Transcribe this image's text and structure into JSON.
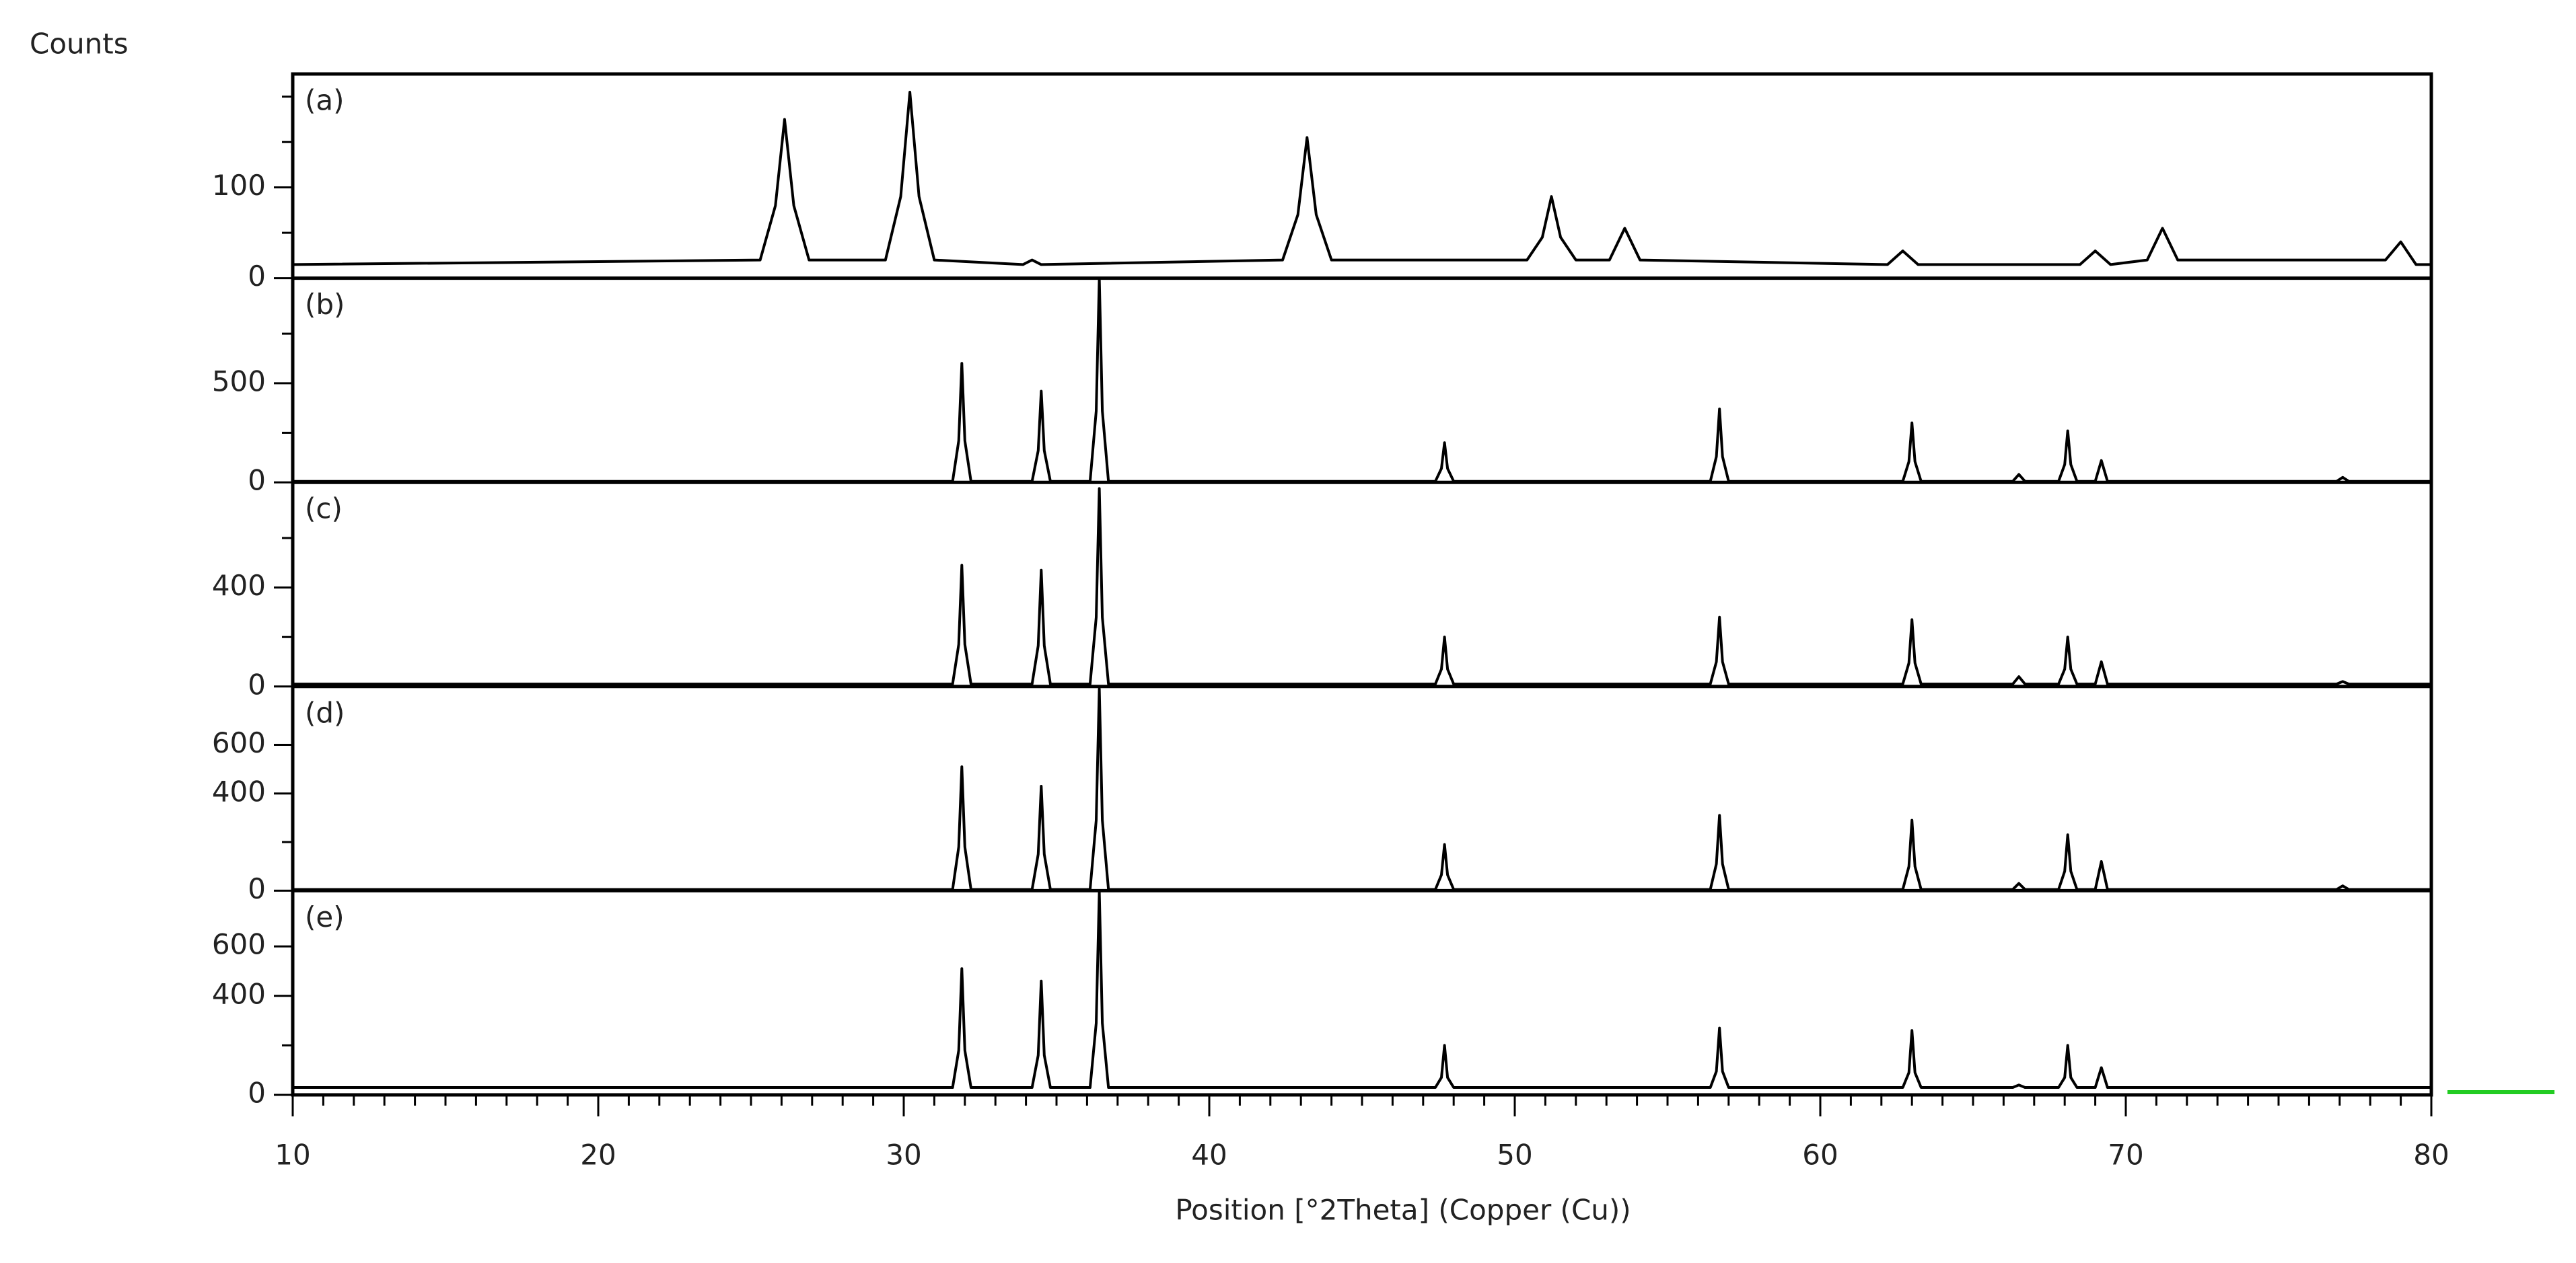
{
  "chart_data": [
    {
      "type": "line",
      "label": "(a)",
      "ylabel": "Counts",
      "xlim": [
        10,
        80
      ],
      "ylim": [
        0,
        225
      ],
      "yticks": [
        0,
        100
      ],
      "minor_yticks": [
        50,
        150,
        200
      ],
      "x": [
        10,
        25.3,
        25.8,
        26.1,
        26.4,
        26.9,
        29.4,
        29.9,
        30.2,
        30.5,
        31.0,
        33.9,
        34.2,
        34.5,
        42.4,
        42.9,
        43.2,
        43.5,
        44.0,
        50.4,
        50.9,
        51.2,
        51.5,
        52.0,
        53.1,
        53.6,
        54.1,
        62.2,
        62.7,
        63.2,
        68.5,
        69.0,
        69.5,
        70.7,
        71.2,
        71.7,
        78.5,
        79.0,
        79.5,
        80
      ],
      "series": [
        {
          "color": "#000000",
          "values": [
            15,
            20,
            80,
            175,
            80,
            20,
            20,
            90,
            205,
            90,
            20,
            15,
            20,
            15,
            20,
            70,
            155,
            70,
            20,
            20,
            45,
            90,
            45,
            20,
            20,
            55,
            20,
            15,
            30,
            15,
            15,
            30,
            15,
            20,
            55,
            20,
            20,
            40,
            15,
            15
          ]
        }
      ]
    },
    {
      "type": "line",
      "label": "(b)",
      "xlim": [
        10,
        80
      ],
      "ylim": [
        0,
        1030
      ],
      "yticks": [
        0,
        500
      ],
      "minor_yticks": [
        250,
        750
      ],
      "x": [
        10,
        20,
        30,
        31.6,
        31.8,
        31.9,
        32.0,
        32.2,
        34.2,
        34.4,
        34.5,
        34.6,
        34.8,
        36.1,
        36.3,
        36.4,
        36.5,
        36.7,
        47.4,
        47.6,
        47.7,
        47.8,
        48.0,
        56.4,
        56.6,
        56.7,
        56.8,
        57.0,
        62.7,
        62.9,
        63.0,
        63.1,
        63.3,
        66.3,
        66.5,
        66.7,
        67.8,
        68.0,
        68.1,
        68.2,
        68.4,
        69.0,
        69.2,
        69.4,
        76.9,
        77.1,
        77.3,
        80
      ],
      "series": [
        {
          "color": "#000000",
          "values": [
            5,
            5,
            5,
            5,
            210,
            600,
            210,
            5,
            5,
            160,
            460,
            160,
            5,
            5,
            360,
            1030,
            360,
            5,
            5,
            70,
            200,
            70,
            5,
            5,
            130,
            370,
            130,
            5,
            5,
            105,
            300,
            105,
            5,
            5,
            40,
            5,
            5,
            90,
            260,
            90,
            5,
            5,
            110,
            5,
            5,
            25,
            5,
            5
          ]
        }
      ]
    },
    {
      "type": "line",
      "label": "(c)",
      "xlim": [
        10,
        80
      ],
      "ylim": [
        0,
        825
      ],
      "yticks": [
        0,
        400
      ],
      "minor_yticks": [
        200,
        600
      ],
      "x": [
        10,
        20,
        30,
        31.6,
        31.8,
        31.9,
        32.0,
        32.2,
        34.2,
        34.4,
        34.5,
        34.6,
        34.8,
        36.1,
        36.3,
        36.4,
        36.5,
        36.7,
        47.4,
        47.6,
        47.7,
        47.8,
        48.0,
        56.4,
        56.6,
        56.7,
        56.8,
        57.0,
        62.7,
        62.9,
        63.0,
        63.1,
        63.3,
        66.3,
        66.5,
        66.7,
        67.8,
        68.0,
        68.1,
        68.2,
        68.4,
        69.0,
        69.2,
        69.4,
        76.9,
        77.1,
        77.3,
        80
      ],
      "series": [
        {
          "color": "#000000",
          "values": [
            10,
            10,
            10,
            10,
            170,
            490,
            170,
            10,
            10,
            165,
            470,
            165,
            10,
            10,
            280,
            800,
            280,
            10,
            10,
            70,
            200,
            70,
            10,
            10,
            100,
            280,
            100,
            10,
            10,
            95,
            270,
            95,
            10,
            10,
            40,
            10,
            10,
            70,
            200,
            70,
            10,
            10,
            100,
            10,
            10,
            20,
            10,
            10
          ]
        }
      ]
    },
    {
      "type": "line",
      "label": "(d)",
      "xlim": [
        10,
        80
      ],
      "ylim": [
        0,
        840
      ],
      "yticks": [
        0,
        400,
        600
      ],
      "minor_yticks": [
        200
      ],
      "x": [
        10,
        20,
        30,
        31.6,
        31.8,
        31.9,
        32.0,
        32.2,
        34.2,
        34.4,
        34.5,
        34.6,
        34.8,
        36.1,
        36.3,
        36.4,
        36.5,
        36.7,
        47.4,
        47.6,
        47.7,
        47.8,
        48.0,
        56.4,
        56.6,
        56.7,
        56.8,
        57.0,
        62.7,
        62.9,
        63.0,
        63.1,
        63.3,
        66.3,
        66.5,
        66.7,
        67.8,
        68.0,
        68.1,
        68.2,
        68.4,
        69.0,
        69.2,
        69.4,
        76.9,
        77.1,
        77.3,
        80
      ],
      "series": [
        {
          "color": "#000000",
          "values": [
            5,
            5,
            5,
            5,
            180,
            510,
            180,
            5,
            5,
            150,
            430,
            150,
            5,
            5,
            290,
            830,
            290,
            5,
            5,
            65,
            190,
            65,
            5,
            5,
            110,
            310,
            110,
            5,
            5,
            100,
            290,
            100,
            5,
            5,
            30,
            5,
            5,
            80,
            230,
            80,
            5,
            5,
            120,
            5,
            5,
            20,
            5,
            5
          ]
        }
      ]
    },
    {
      "type": "line",
      "label": "(e)",
      "xlabel": "Position [°2Theta] (Copper (Cu))",
      "xlim": [
        10,
        80
      ],
      "xticks": [
        10,
        20,
        30,
        40,
        50,
        60,
        70,
        80
      ],
      "minor_xticks": [
        11,
        12,
        13,
        14,
        15,
        16,
        17,
        18,
        19,
        21,
        22,
        23,
        24,
        25,
        26,
        27,
        28,
        29,
        31,
        32,
        33,
        34,
        35,
        36,
        37,
        38,
        39,
        41,
        42,
        43,
        44,
        45,
        46,
        47,
        48,
        49,
        51,
        52,
        53,
        54,
        55,
        56,
        57,
        58,
        59,
        61,
        62,
        63,
        64,
        65,
        66,
        67,
        68,
        69,
        71,
        72,
        73,
        74,
        75,
        76,
        77,
        78,
        79
      ],
      "ylim": [
        0,
        825
      ],
      "yticks": [
        0,
        400,
        600
      ],
      "minor_yticks": [
        200
      ],
      "x": [
        10,
        20,
        30,
        31.6,
        31.8,
        31.9,
        32.0,
        32.2,
        34.2,
        34.4,
        34.5,
        34.6,
        34.8,
        36.1,
        36.3,
        36.4,
        36.5,
        36.7,
        47.4,
        47.6,
        47.7,
        47.8,
        48.0,
        56.4,
        56.6,
        56.7,
        56.8,
        57.0,
        62.7,
        62.9,
        63.0,
        63.1,
        63.3,
        66.3,
        66.5,
        66.7,
        67.8,
        68.0,
        68.1,
        68.2,
        68.4,
        69.0,
        69.2,
        69.4,
        76.9,
        77.1,
        77.3,
        80
      ],
      "series": [
        {
          "color": "#000000",
          "values": [
            30,
            30,
            30,
            30,
            180,
            510,
            180,
            30,
            30,
            160,
            460,
            160,
            30,
            30,
            290,
            820,
            290,
            30,
            30,
            70,
            200,
            70,
            30,
            30,
            95,
            270,
            95,
            30,
            30,
            90,
            260,
            90,
            30,
            30,
            40,
            30,
            30,
            70,
            200,
            70,
            30,
            30,
            110,
            30,
            30,
            30,
            30,
            30
          ]
        }
      ]
    }
  ]
}
